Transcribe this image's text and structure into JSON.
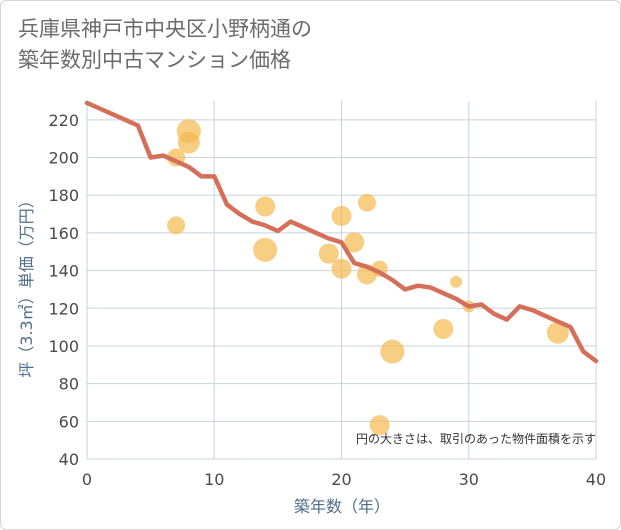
{
  "title": {
    "line1": "兵庫県神戸市中央区小野柄通の",
    "line2": "築年数別中古マンション価格"
  },
  "chart_data": {
    "type": "scatter",
    "xlabel": "築年数（年）",
    "ylabel": "坪（3.3㎡）単価（万円）",
    "xlim": [
      0,
      40
    ],
    "ylim": [
      40,
      230
    ],
    "x_ticks": [
      0,
      10,
      20,
      30,
      40
    ],
    "y_ticks": [
      40,
      60,
      80,
      100,
      120,
      140,
      160,
      180,
      200,
      220
    ],
    "grid": true,
    "note": "円の大きさは、取引のあった物件面積を示す",
    "colors": {
      "bubble": "#f5b94e",
      "line": "#d4705a",
      "grid": "#c8d3dd",
      "axis_text": "#4f6f8a"
    },
    "points": [
      {
        "x": 7,
        "y": 200,
        "size": 9
      },
      {
        "x": 7,
        "y": 164,
        "size": 9
      },
      {
        "x": 8,
        "y": 214,
        "size": 12
      },
      {
        "x": 8,
        "y": 208,
        "size": 11
      },
      {
        "x": 14,
        "y": 174,
        "size": 10
      },
      {
        "x": 14,
        "y": 151,
        "size": 12
      },
      {
        "x": 19,
        "y": 149,
        "size": 10
      },
      {
        "x": 20,
        "y": 169,
        "size": 10
      },
      {
        "x": 20,
        "y": 141,
        "size": 10
      },
      {
        "x": 21,
        "y": 155,
        "size": 10
      },
      {
        "x": 22,
        "y": 176,
        "size": 9
      },
      {
        "x": 22,
        "y": 138,
        "size": 10
      },
      {
        "x": 23,
        "y": 141,
        "size": 8
      },
      {
        "x": 23,
        "y": 58,
        "size": 10
      },
      {
        "x": 24,
        "y": 97,
        "size": 12
      },
      {
        "x": 28,
        "y": 109,
        "size": 10
      },
      {
        "x": 29,
        "y": 134,
        "size": 6
      },
      {
        "x": 30,
        "y": 121,
        "size": 6
      },
      {
        "x": 37,
        "y": 107,
        "size": 11
      }
    ],
    "trend": {
      "x": [
        0,
        1,
        2,
        3,
        4,
        5,
        6,
        7,
        8,
        9,
        10,
        11,
        12,
        13,
        14,
        15,
        16,
        17,
        18,
        19,
        20,
        21,
        22,
        23,
        24,
        25,
        26,
        27,
        28,
        29,
        30,
        31,
        32,
        33,
        34,
        35,
        36,
        37,
        38,
        39,
        40
      ],
      "y": [
        229,
        226,
        223,
        220,
        217,
        200,
        201,
        198,
        195,
        190,
        190,
        175,
        170,
        166,
        164,
        161,
        166,
        163,
        160,
        157,
        155,
        144,
        142,
        139,
        135,
        130,
        132,
        131,
        128,
        125,
        121,
        122,
        117,
        114,
        121,
        119,
        116,
        113,
        110,
        97,
        92
      ]
    }
  }
}
